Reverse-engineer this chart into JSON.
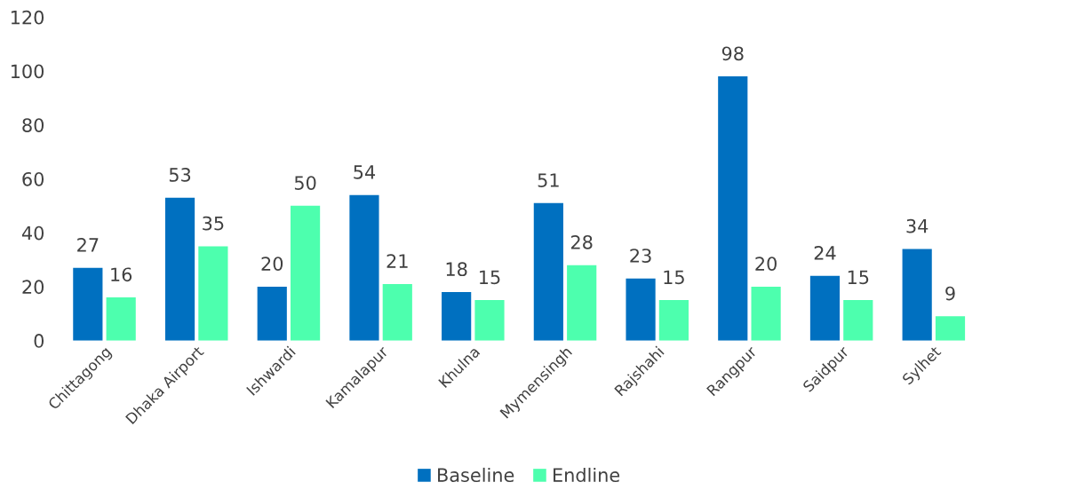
{
  "chart_data": {
    "type": "bar",
    "categories": [
      "Chittagong",
      "Dhaka Airport",
      "Ishwardi",
      "Kamalapur",
      "Khulna",
      "Mymensingh",
      "Rajshahi",
      "Rangpur",
      "Saidpur",
      "Sylhet"
    ],
    "series": [
      {
        "name": "Baseline",
        "color": "#0070c0",
        "values": [
          27,
          53,
          20,
          54,
          18,
          51,
          23,
          98,
          24,
          34
        ]
      },
      {
        "name": "Endline",
        "color": "#4dffae",
        "values": [
          16,
          35,
          50,
          21,
          15,
          28,
          15,
          20,
          15,
          9
        ]
      }
    ],
    "ylim": [
      0,
      120
    ],
    "yticks": [
      0,
      20,
      40,
      60,
      80,
      100,
      120
    ],
    "data_labels": true,
    "grid": false,
    "legend": "bottom"
  }
}
